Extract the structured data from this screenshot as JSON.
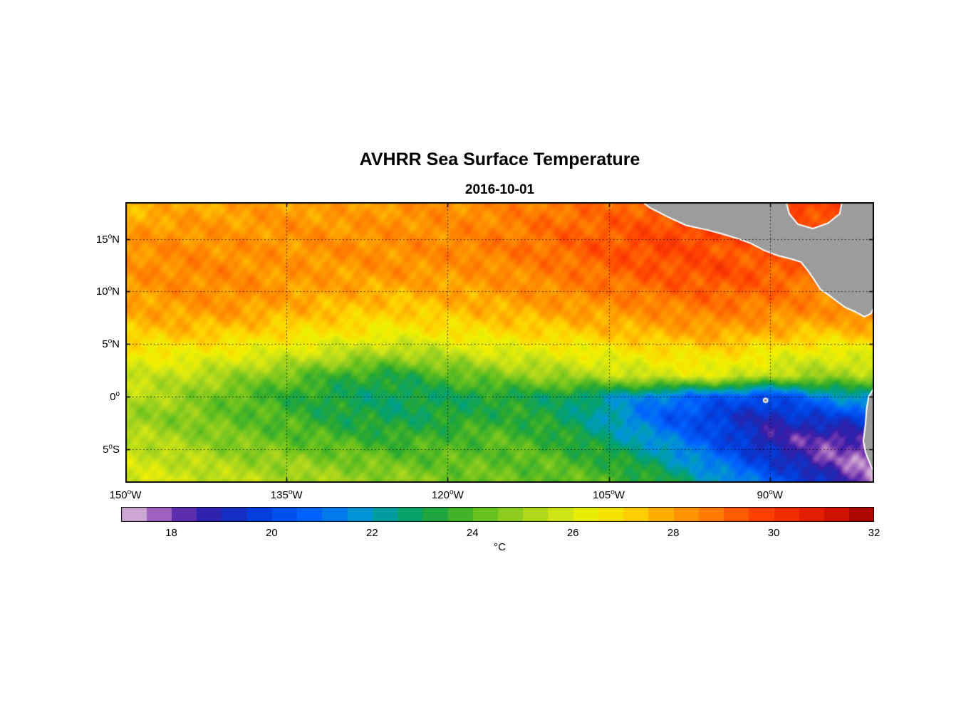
{
  "colorbar": {
    "unit": "°C",
    "domain": [
      17,
      32
    ],
    "ticks": [
      18,
      20,
      22,
      24,
      26,
      28,
      30,
      32
    ],
    "step": 0.5
  },
  "chart_data": {
    "type": "heatmap",
    "title": "AVHRR Sea Surface Temperature",
    "subtitle": "2016-10-01",
    "xticks": [
      {
        "lon": -150,
        "label": "150°W"
      },
      {
        "lon": -135,
        "label": "135°W"
      },
      {
        "lon": -120,
        "label": "120°W"
      },
      {
        "lon": -105,
        "label": "105°W"
      },
      {
        "lon": -90,
        "label": "90°W"
      }
    ],
    "yticks": [
      {
        "lat": 15,
        "label": "15°N"
      },
      {
        "lat": 10,
        "label": "10°N"
      },
      {
        "lat": 5,
        "label": "5°N"
      },
      {
        "lat": 0,
        "label": "0°"
      },
      {
        "lat": -5,
        "label": "5°S"
      }
    ],
    "lon_range": [
      -150,
      -80.3
    ],
    "lat_range": [
      -8.2,
      18.5
    ],
    "grid_lons": [
      -150,
      -145,
      -140,
      -135,
      -130,
      -125,
      -120,
      -115,
      -110,
      -105,
      -100,
      -95,
      -90,
      -85,
      -80
    ],
    "grid_lats": [
      18,
      16,
      14,
      12,
      10,
      8,
      6,
      4,
      2,
      0,
      -2,
      -4,
      -6,
      -8
    ],
    "sst_grid": [
      [
        27.6,
        27.8,
        28.0,
        28.1,
        28.0,
        28.2,
        28.3,
        28.5,
        28.8,
        29.0,
        29.4,
        29.8,
        30.0,
        29.6,
        29.2
      ],
      [
        28.0,
        28.2,
        28.1,
        28.3,
        28.2,
        28.3,
        28.4,
        28.6,
        29.0,
        29.2,
        29.5,
        29.9,
        29.7,
        29.4,
        29.0
      ],
      [
        28.2,
        28.4,
        28.3,
        28.2,
        28.4,
        28.3,
        28.5,
        28.7,
        29.0,
        29.4,
        29.7,
        29.4,
        29.2,
        29.0,
        28.8
      ],
      [
        28.3,
        28.5,
        28.4,
        28.2,
        28.1,
        28.3,
        28.2,
        28.4,
        28.7,
        29.1,
        29.4,
        29.6,
        29.3,
        29.0,
        28.6
      ],
      [
        28.0,
        28.3,
        28.4,
        28.1,
        27.9,
        27.7,
        27.9,
        28.1,
        28.4,
        28.7,
        29.0,
        29.2,
        29.0,
        28.6,
        28.4
      ],
      [
        27.8,
        28.0,
        28.1,
        27.7,
        27.4,
        27.2,
        27.4,
        27.7,
        27.9,
        28.1,
        28.4,
        28.7,
        28.5,
        28.3,
        28.6
      ],
      [
        27.2,
        27.4,
        27.2,
        26.9,
        26.7,
        26.4,
        26.7,
        26.9,
        27.1,
        27.4,
        27.7,
        27.9,
        27.7,
        27.3,
        27.6
      ],
      [
        26.4,
        26.5,
        26.2,
        25.9,
        25.4,
        25.0,
        25.4,
        25.9,
        26.1,
        26.4,
        26.7,
        26.9,
        26.4,
        26.0,
        26.2
      ],
      [
        25.8,
        25.5,
        25.0,
        24.4,
        23.6,
        23.2,
        24.0,
        24.6,
        25.0,
        25.4,
        25.9,
        26.1,
        25.4,
        25.0,
        25.2
      ],
      [
        25.4,
        25.0,
        24.1,
        23.5,
        23.0,
        22.8,
        23.0,
        23.2,
        23.0,
        22.2,
        21.2,
        20.6,
        20.0,
        21.4,
        22.6
      ],
      [
        25.0,
        24.6,
        24.2,
        23.8,
        23.2,
        23.0,
        23.2,
        23.5,
        23.1,
        22.0,
        20.6,
        19.6,
        19.0,
        19.6,
        20.0
      ],
      [
        25.5,
        25.0,
        24.5,
        24.1,
        23.8,
        23.5,
        23.8,
        24.0,
        23.5,
        22.6,
        21.5,
        20.1,
        18.6,
        18.1,
        18.4
      ],
      [
        25.8,
        25.5,
        25.0,
        24.8,
        24.5,
        24.2,
        24.1,
        24.2,
        24.0,
        23.4,
        22.4,
        21.0,
        19.5,
        18.1,
        17.4
      ],
      [
        26.0,
        25.8,
        25.5,
        25.2,
        25.0,
        24.8,
        24.5,
        24.3,
        24.2,
        24.0,
        23.2,
        22.0,
        20.6,
        19.2,
        17.3
      ]
    ],
    "colormap_stops": [
      [
        17.0,
        "#E2CCE2"
      ],
      [
        17.3,
        "#C9A0D0"
      ],
      [
        17.7,
        "#A468C0"
      ],
      [
        18.1,
        "#7038B0"
      ],
      [
        18.5,
        "#3C1EA8"
      ],
      [
        19.0,
        "#1E28B4"
      ],
      [
        19.8,
        "#0040E0"
      ],
      [
        20.8,
        "#0064FF"
      ],
      [
        21.8,
        "#0096D2"
      ],
      [
        22.6,
        "#00A078"
      ],
      [
        23.4,
        "#28A832"
      ],
      [
        24.2,
        "#64C01E"
      ],
      [
        25.0,
        "#A0D21E"
      ],
      [
        25.8,
        "#D2E614"
      ],
      [
        26.4,
        "#F0F000"
      ],
      [
        27.2,
        "#FFD200"
      ],
      [
        28.0,
        "#FFA000"
      ],
      [
        28.8,
        "#FF7800"
      ],
      [
        29.6,
        "#FF4600"
      ],
      [
        30.4,
        "#F02800"
      ],
      [
        31.2,
        "#D21400"
      ],
      [
        32.0,
        "#A00000"
      ]
    ],
    "land_color": "#9C9C9C",
    "coast_color": "#FFFFFF",
    "grid_lines": {
      "lats": [
        15,
        10,
        5,
        0,
        -5
      ],
      "lons": [
        -135,
        -120,
        -105,
        -90
      ],
      "style": "dotted"
    },
    "land_polygons": {
      "central_america": [
        [
          -102.5,
          19.0
        ],
        [
          -101.2,
          18.0
        ],
        [
          -99.5,
          17.1
        ],
        [
          -97.8,
          16.3
        ],
        [
          -96.0,
          15.9
        ],
        [
          -94.5,
          15.5
        ],
        [
          -93.2,
          15.1
        ],
        [
          -91.8,
          14.6
        ],
        [
          -90.5,
          13.9
        ],
        [
          -89.2,
          13.4
        ],
        [
          -88.0,
          13.1
        ],
        [
          -87.1,
          12.8
        ],
        [
          -86.4,
          11.9
        ],
        [
          -85.8,
          11.0
        ],
        [
          -85.3,
          10.2
        ],
        [
          -84.7,
          9.8
        ],
        [
          -83.8,
          9.1
        ],
        [
          -83.0,
          8.5
        ],
        [
          -82.1,
          8.1
        ],
        [
          -81.2,
          7.6
        ],
        [
          -80.6,
          7.9
        ],
        [
          -80.1,
          8.9
        ],
        [
          -79.8,
          19.0
        ],
        [
          -83.2,
          19.0
        ],
        [
          -83.5,
          17.4
        ],
        [
          -84.6,
          16.5
        ],
        [
          -86.0,
          16.0
        ],
        [
          -87.4,
          16.4
        ],
        [
          -88.2,
          17.4
        ],
        [
          -88.6,
          19.0
        ]
      ],
      "south_america": [
        [
          -80.2,
          1.0
        ],
        [
          -80.8,
          0.0
        ],
        [
          -81.0,
          -1.2
        ],
        [
          -81.1,
          -2.6
        ],
        [
          -81.3,
          -4.2
        ],
        [
          -81.1,
          -5.3
        ],
        [
          -80.6,
          -6.6
        ],
        [
          -80.2,
          -7.4
        ],
        [
          -79.8,
          -8.5
        ],
        [
          -79.7,
          1.0
        ]
      ],
      "galapagos_center": [
        -90.4,
        -0.35
      ]
    }
  }
}
